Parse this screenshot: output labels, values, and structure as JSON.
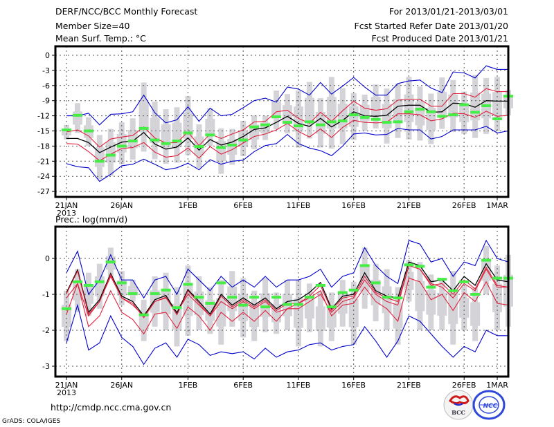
{
  "header": {
    "title": "DERF/NCC/BCC Monthly Forecast",
    "member_size": "Member Size=40",
    "variable": "Mean Surf. Temp.: °C",
    "period": "For 2013/01/21-2013/03/01",
    "started": "Fcst Started Refer Date 2013/01/20",
    "produced": "Fcst Produced Date 2013/01/21"
  },
  "footer": {
    "url": "http://cmdp.ncc.cma.gov.cn",
    "grads": "GrADS: COLA/IGES",
    "logo_bcc": "BCC",
    "logo_ncc": "NCC"
  },
  "colors": {
    "mean": "#000000",
    "spread": "#e0203c",
    "extreme": "#0000cc",
    "obs": "#44ee44",
    "box": "#d3d3d8",
    "grid": "#555555"
  },
  "chart_data": [
    {
      "type": "line",
      "title": "Mean Surf. Temp.: °C",
      "xlabel": "",
      "ylabel": "",
      "ylim": [
        -28,
        1.5
      ],
      "yticks": [
        0,
        -3,
        -6,
        -9,
        -12,
        -15,
        -18,
        -21,
        -24,
        -27
      ],
      "ytick_labels": [
        "0",
        "-3",
        "-6",
        "-9",
        "-12",
        "-15",
        "-18",
        "-21",
        "-24",
        "-27"
      ],
      "xticks": [
        0,
        5,
        11,
        16,
        21,
        26,
        31,
        36,
        39
      ],
      "xtick_labels": [
        "21JAN",
        "26JAN",
        "1FEB",
        "6FEB",
        "11FEB",
        "16FEB",
        "21FEB",
        "26FEB",
        "1MAR"
      ],
      "xtick_sublabel": "2013",
      "grid": true,
      "series": [
        {
          "name": "max",
          "color": "extreme",
          "values": [
            -12.0,
            -12.0,
            -11.5,
            -13.8,
            -11.7,
            -11.6,
            -11.2,
            -7.9,
            -11.4,
            -13.4,
            -12.8,
            -10.2,
            -13.1,
            -10.5,
            -12.0,
            -11.7,
            -10.4,
            -9.0,
            -8.5,
            -9.3,
            -6.3,
            -6.7,
            -7.9,
            -5.4,
            -7.7,
            -6.1,
            -4.4,
            -6.3,
            -7.9,
            -7.9,
            -5.6,
            -5.1,
            -4.9,
            -6.5,
            -7.4,
            -3.3,
            -3.5,
            -4.5,
            -2.1,
            -2.8,
            -2.8
          ]
        },
        {
          "name": "upper",
          "color": "spread",
          "values": [
            -15.2,
            -14.8,
            -16.0,
            -18.2,
            -16.6,
            -16.2,
            -15.9,
            -14.2,
            -16.4,
            -17.4,
            -17.3,
            -15.2,
            -17.9,
            -15.6,
            -16.5,
            -15.6,
            -14.8,
            -13.2,
            -13.1,
            -11.2,
            -10.9,
            -12.5,
            -13.5,
            -11.3,
            -13.1,
            -11.0,
            -9.1,
            -10.5,
            -10.9,
            -10.6,
            -8.9,
            -8.7,
            -8.7,
            -10.1,
            -10.1,
            -7.6,
            -7.6,
            -8.3,
            -6.6,
            -7.2,
            -7.2
          ]
        },
        {
          "name": "mean",
          "color": "mean",
          "values": [
            -16.5,
            -16.5,
            -17.3,
            -19.3,
            -18.2,
            -17.2,
            -17.0,
            -15.3,
            -17.6,
            -18.6,
            -18.2,
            -16.4,
            -18.8,
            -16.7,
            -17.8,
            -17.2,
            -16.1,
            -14.7,
            -14.4,
            -13.3,
            -12.1,
            -13.5,
            -14.1,
            -12.5,
            -14.2,
            -12.9,
            -11.2,
            -12.0,
            -12.1,
            -11.9,
            -10.1,
            -9.9,
            -9.9,
            -11.3,
            -11.2,
            -9.5,
            -9.6,
            -10.3,
            -9.0,
            -9.1,
            -9.1
          ]
        },
        {
          "name": "lower",
          "color": "spread",
          "values": [
            -17.5,
            -17.6,
            -19.1,
            -20.9,
            -19.6,
            -18.5,
            -18.3,
            -17.3,
            -19.2,
            -20.2,
            -19.9,
            -18.4,
            -20.4,
            -18.1,
            -19.6,
            -18.7,
            -17.4,
            -16.1,
            -15.6,
            -14.8,
            -13.5,
            -15.1,
            -16.2,
            -14.6,
            -16.3,
            -14.3,
            -12.9,
            -13.3,
            -13.4,
            -13.3,
            -11.6,
            -11.6,
            -11.8,
            -13.0,
            -12.6,
            -11.5,
            -11.6,
            -12.3,
            -11.1,
            -12.1,
            -11.9
          ]
        },
        {
          "name": "min",
          "color": "extreme",
          "values": [
            -21.5,
            -22.1,
            -22.3,
            -25.0,
            -23.6,
            -21.9,
            -21.6,
            -20.6,
            -21.6,
            -22.7,
            -22.3,
            -21.4,
            -22.7,
            -20.7,
            -21.6,
            -21.0,
            -20.8,
            -19.1,
            -17.9,
            -17.5,
            -15.7,
            -17.5,
            -18.4,
            -18.9,
            -19.9,
            -18.0,
            -15.6,
            -15.4,
            -15.8,
            -15.7,
            -14.5,
            -14.8,
            -14.8,
            -16.6,
            -16.1,
            -14.8,
            -14.8,
            -14.8,
            -14.1,
            -15.4,
            -15.0
          ]
        }
      ],
      "observed": [
        -14.8,
        -11.9,
        -15.0,
        -21.0,
        -19.8,
        -18.0,
        -17.0,
        -14.5,
        -16.8,
        -17.5,
        -17.0,
        -15.4,
        -18.1,
        -15.8,
        -18.3,
        -17.8,
        -16.8,
        -14.2,
        -13.8,
        -12.2,
        -13.3,
        -14.0,
        -13.2,
        -13.8,
        -13.2,
        -13.0,
        -11.8,
        -12.3,
        -12.7,
        -13.3,
        -13.2,
        -11.2,
        -10.7,
        -11.2,
        -12.1,
        -11.8,
        -9.8,
        -11.3,
        -10.0,
        -12.6,
        -8.1
      ],
      "box_range": [
        [
          -13.8,
          -16.7
        ],
        [
          -9.5,
          -15.4
        ],
        [
          -12.3,
          -18.0
        ],
        [
          -15.8,
          -24.6
        ],
        [
          -14.6,
          -23.9
        ],
        [
          -13.3,
          -21.6
        ],
        [
          -12.5,
          -20.7
        ],
        [
          -5.4,
          -19.1
        ],
        [
          -9.2,
          -20.6
        ],
        [
          -10.7,
          -21.5
        ],
        [
          -10.3,
          -21.3
        ],
        [
          -8.1,
          -19.8
        ],
        [
          -13.7,
          -22.3
        ],
        [
          -10.5,
          -18.0
        ],
        [
          -14.5,
          -23.5
        ],
        [
          -14.6,
          -21.7
        ],
        [
          -13.0,
          -20.0
        ],
        [
          -11.9,
          -18.6
        ],
        [
          -12.0,
          -16.8
        ],
        [
          -7.0,
          -14.7
        ],
        [
          -7.7,
          -15.5
        ],
        [
          -7.0,
          -18.3
        ],
        [
          -5.3,
          -16.5
        ],
        [
          -8.5,
          -18.3
        ],
        [
          -4.3,
          -18.5
        ],
        [
          -6.5,
          -17.6
        ],
        [
          -7.5,
          -16.8
        ],
        [
          -7.8,
          -15.0
        ],
        [
          -5.8,
          -14.5
        ],
        [
          -6.6,
          -17.5
        ],
        [
          -5.6,
          -16.4
        ],
        [
          -4.3,
          -16.7
        ],
        [
          -6.2,
          -16.9
        ],
        [
          -7.6,
          -17.6
        ],
        [
          -4.4,
          -14.6
        ],
        [
          -4.9,
          -15.2
        ],
        [
          -7.2,
          -15.6
        ],
        [
          -3.9,
          -16.4
        ],
        [
          -4.5,
          -15.6
        ],
        [
          -4.3,
          -15.0
        ],
        [
          -6.9,
          -11.9
        ]
      ]
    },
    {
      "type": "line",
      "title": "Prec.: log(mm/d)",
      "xlabel": "",
      "ylabel": "",
      "ylim": [
        -3.3,
        0.8
      ],
      "yticks": [
        0,
        -1,
        -2,
        -3
      ],
      "ytick_labels": [
        "0",
        "-1",
        "-2",
        "-3"
      ],
      "xticks": [
        0,
        5,
        11,
        16,
        21,
        26,
        31,
        36,
        39
      ],
      "xtick_labels": [
        "21JAN",
        "26JAN",
        "1FEB",
        "6FEB",
        "11FEB",
        "16FEB",
        "21FEB",
        "26FEB",
        "1MAR"
      ],
      "xtick_sublabel": "2013",
      "grid": true,
      "series": [
        {
          "name": "max",
          "color": "extreme",
          "values": [
            -0.4,
            0.2,
            -1.0,
            -0.6,
            0.1,
            -0.6,
            -0.6,
            -1.1,
            -0.6,
            -0.5,
            -1.0,
            -0.3,
            -0.6,
            -0.9,
            -0.5,
            -0.8,
            -0.6,
            -0.8,
            -0.5,
            -0.8,
            -0.6,
            -0.6,
            -0.5,
            -0.3,
            -0.8,
            -0.5,
            -0.4,
            0.3,
            -0.2,
            -0.5,
            -0.7,
            0.5,
            0.4,
            -0.1,
            0.0,
            -0.5,
            -0.1,
            -0.2,
            0.5,
            -0.0,
            -0.1
          ]
        },
        {
          "name": "upper",
          "color": "spread",
          "values": [
            -1.1,
            -0.7,
            -1.6,
            -1.2,
            -0.5,
            -1.1,
            -1.3,
            -1.6,
            -1.2,
            -1.1,
            -1.5,
            -1.0,
            -1.3,
            -1.6,
            -1.2,
            -1.4,
            -1.2,
            -1.4,
            -1.2,
            -1.5,
            -1.4,
            -1.4,
            -1.2,
            -1.0,
            -1.5,
            -1.2,
            -1.1,
            -0.6,
            -1.0,
            -1.2,
            -1.3,
            -0.2,
            -0.3,
            -0.7,
            -0.8,
            -1.1,
            -0.7,
            -0.9,
            -0.3,
            -0.8,
            -0.8
          ]
        },
        {
          "name": "mean",
          "color": "mean",
          "values": [
            -0.95,
            -0.32,
            -1.5,
            -1.15,
            -0.42,
            -1.05,
            -1.2,
            -1.6,
            -1.15,
            -1.03,
            -1.52,
            -0.87,
            -1.2,
            -1.55,
            -1.0,
            -1.3,
            -1.1,
            -1.3,
            -1.1,
            -1.4,
            -1.2,
            -1.15,
            -0.95,
            -0.67,
            -1.4,
            -1.05,
            -1.0,
            -0.4,
            -0.9,
            -1.05,
            -1.1,
            -0.1,
            -0.2,
            -0.65,
            -0.6,
            -0.9,
            -0.5,
            -0.75,
            -0.15,
            -0.6,
            -0.65
          ]
        },
        {
          "name": "lower",
          "color": "spread",
          "values": [
            -1.55,
            -0.7,
            -1.9,
            -1.6,
            -0.9,
            -1.5,
            -1.7,
            -2.1,
            -1.55,
            -1.5,
            -1.95,
            -1.35,
            -1.6,
            -2.0,
            -1.5,
            -1.75,
            -1.5,
            -1.75,
            -1.45,
            -1.75,
            -1.4,
            -1.25,
            -1.1,
            -0.9,
            -1.6,
            -1.3,
            -1.25,
            -0.8,
            -1.2,
            -1.4,
            -1.75,
            -0.55,
            -0.65,
            -1.15,
            -1.0,
            -1.45,
            -0.95,
            -1.2,
            -0.65,
            -1.25,
            -1.3
          ]
        },
        {
          "name": "min",
          "color": "extreme",
          "values": [
            -2.35,
            -1.3,
            -2.55,
            -2.35,
            -1.6,
            -2.2,
            -2.45,
            -2.95,
            -2.5,
            -2.35,
            -2.75,
            -2.25,
            -2.4,
            -2.7,
            -2.6,
            -2.65,
            -2.6,
            -2.8,
            -2.5,
            -2.75,
            -2.6,
            -2.55,
            -2.4,
            -2.35,
            -2.55,
            -2.45,
            -2.4,
            -1.9,
            -2.3,
            -2.75,
            -2.3,
            -1.6,
            -1.75,
            -2.1,
            -2.45,
            -2.75,
            -2.45,
            -2.6,
            -2.0,
            -2.15,
            -2.15
          ]
        },
        {
          "name": "mean_overlay",
          "color": "spread",
          "values": [
            -0.98,
            -0.35,
            -1.55,
            -1.2,
            -0.45,
            -1.1,
            -1.25,
            -1.65,
            -1.2,
            -1.08,
            -1.57,
            -0.9,
            -1.25,
            -1.6,
            -1.05,
            -1.35,
            -1.15,
            -1.35,
            -1.15,
            -1.45,
            -1.25,
            -1.25,
            -1.05,
            -0.75,
            -1.45,
            -1.1,
            -1.05,
            -0.5,
            -0.95,
            -1.1,
            -1.2,
            -0.2,
            -0.3,
            -0.75,
            -0.7,
            -1.0,
            -0.6,
            -0.85,
            -0.25,
            -0.75,
            -0.8
          ]
        }
      ],
      "observed": [
        -1.4,
        -0.65,
        -0.75,
        -0.65,
        -0.1,
        -0.68,
        -0.98,
        -1.57,
        -0.98,
        -0.88,
        -1.37,
        -0.72,
        -1.08,
        -1.25,
        -0.68,
        -1.08,
        -1.3,
        -1.08,
        -1.35,
        -1.08,
        -1.28,
        -1.28,
        -1.08,
        -0.75,
        -1.35,
        -0.95,
        -0.88,
        -0.2,
        -0.68,
        -1.08,
        -1.1,
        -0.18,
        -0.22,
        -0.8,
        -0.58,
        -0.9,
        -0.65,
        -1.0,
        -0.05,
        -0.55,
        -0.55
      ],
      "box_range": [
        [
          -0.9,
          -2.3
        ],
        [
          -0.3,
          -1.5
        ],
        [
          -0.4,
          -1.6
        ],
        [
          -0.15,
          -1.4
        ],
        [
          0.3,
          -0.55
        ],
        [
          -0.35,
          -1.3
        ],
        [
          -0.6,
          -1.2
        ],
        [
          -1.15,
          -2.3
        ],
        [
          -0.5,
          -1.9
        ],
        [
          -0.4,
          -2.0
        ],
        [
          -0.8,
          -2.45
        ],
        [
          -0.2,
          -2.15
        ],
        [
          -0.5,
          -2.0
        ],
        [
          -0.8,
          -2.1
        ],
        [
          -0.6,
          -2.4
        ],
        [
          -0.35,
          -1.9
        ],
        [
          -0.55,
          -2.2
        ],
        [
          -0.9,
          -2.3
        ],
        [
          -0.55,
          -2.05
        ],
        [
          -0.95,
          -2.1
        ],
        [
          -0.6,
          -2.0
        ],
        [
          -0.6,
          -2.45
        ],
        [
          -0.7,
          -2.05
        ],
        [
          -0.9,
          -2.45
        ],
        [
          -0.95,
          -2.3
        ],
        [
          -0.6,
          -1.9
        ],
        [
          -0.65,
          -2.4
        ],
        [
          0.3,
          -1.4
        ],
        [
          -0.15,
          -1.75
        ],
        [
          -0.3,
          -2.0
        ],
        [
          -0.8,
          -2.4
        ],
        [
          -0.05,
          -1.2
        ],
        [
          -0.1,
          -2.0
        ],
        [
          -0.45,
          -2.0
        ],
        [
          -0.55,
          -2.0
        ],
        [
          -0.35,
          -2.4
        ],
        [
          -0.75,
          -2.0
        ],
        [
          -0.8,
          -2.3
        ],
        [
          0.35,
          -1.0
        ],
        [
          -0.2,
          -2.0
        ],
        [
          0.1,
          -1.9
        ]
      ]
    }
  ]
}
